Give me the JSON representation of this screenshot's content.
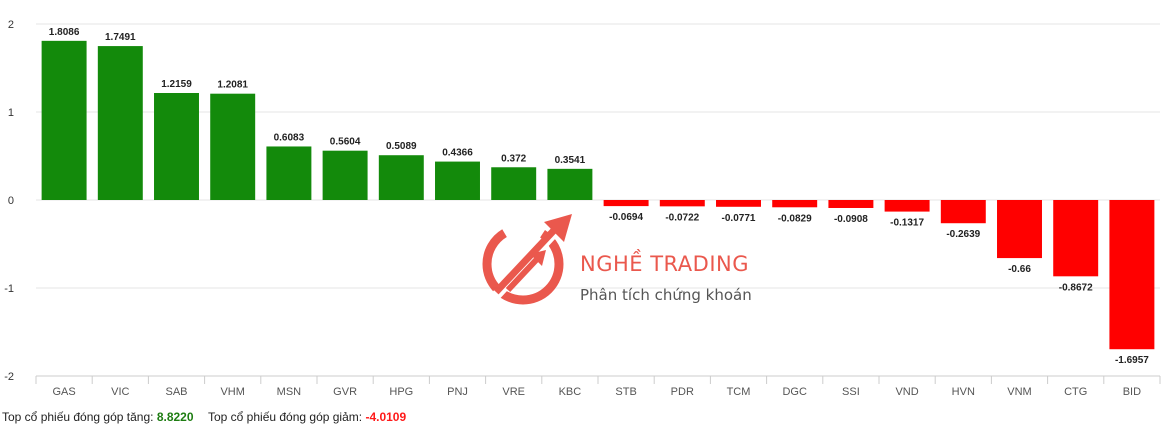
{
  "chart_data": {
    "type": "bar",
    "categories": [
      "GAS",
      "VIC",
      "SAB",
      "VHM",
      "MSN",
      "GVR",
      "HPG",
      "PNJ",
      "VRE",
      "KBC",
      "STB",
      "PDR",
      "TCM",
      "DGC",
      "SSI",
      "VND",
      "HVN",
      "VNM",
      "CTG",
      "BID"
    ],
    "values": [
      1.8086,
      1.7491,
      1.2159,
      1.2081,
      0.6083,
      0.5604,
      0.5089,
      0.4366,
      0.372,
      0.3541,
      -0.0694,
      -0.0722,
      -0.0771,
      -0.0829,
      -0.0908,
      -0.1317,
      -0.2639,
      -0.66,
      -0.8672,
      -1.6957
    ],
    "data_labels": [
      "1.8086",
      "1.7491",
      "1.2159",
      "1.2081",
      "0.6083",
      "0.5604",
      "0.5089",
      "0.4366",
      "0.372",
      "0.3541",
      "-0.0694",
      "-0.0722",
      "-0.0771",
      "-0.0829",
      "-0.0908",
      "-0.1317",
      "-0.2639",
      "-0.66",
      "-0.8672",
      "-1.6957"
    ],
    "y_ticks": [
      "2",
      "1",
      "0",
      "-1",
      "-2"
    ],
    "ylim": [
      -2,
      2
    ],
    "grid": true,
    "positive_color": "#138a0b",
    "negative_color": "#ff0000"
  },
  "watermark": {
    "brand": "NGHỀ TRADING",
    "tagline": "Phân tích chứng khoán",
    "color": "#e8463a"
  },
  "footer": {
    "up_label": "Top cổ phiếu đóng góp tăng:",
    "up_value": "8.8220",
    "down_label": "Top cổ phiếu đóng góp giảm:",
    "down_value": "-4.0109"
  }
}
